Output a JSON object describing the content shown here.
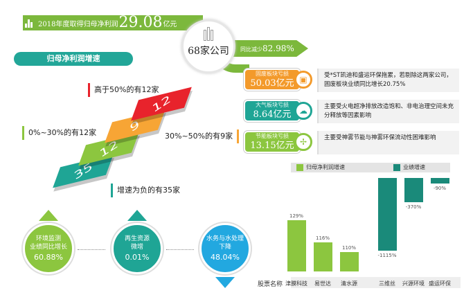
{
  "banner": {
    "prefix": "2018年度取得归母净利润",
    "value": "29.08",
    "unit": "亿元"
  },
  "hub": {
    "label": "68家公司"
  },
  "decline": {
    "prefix": "同比减少",
    "value": "82.98%"
  },
  "growth_title": "归母净利润增速",
  "steps": [
    {
      "count": "35",
      "label": "增速为负的有35家",
      "color": "#1fa595"
    },
    {
      "count": "12",
      "label": "0%~30%的有12家",
      "color": "#8cc63f"
    },
    {
      "count": "9",
      "label": "30%~50%的有9家",
      "color": "#f7a535"
    },
    {
      "count": "12",
      "label": "高于50%的有12家",
      "color": "#e8232c"
    }
  ],
  "sectors": [
    {
      "title": "固废板块亏损",
      "value": "50.03亿元",
      "note": "受*ST凯迪和盛运环保拖累，若剔除这两家公司，固废板块业绩同比增长20.75%",
      "color": "#f39a2b",
      "icon": "trash-bin-icon"
    },
    {
      "title": "大气板块亏损",
      "value": "8.64亿元",
      "note": "主要受火电超净排放改造饱和、非电治理空间未充分释放等因素影响",
      "color": "#1fa595",
      "icon": "cloud-icon"
    },
    {
      "title": "节能板块亏损",
      "value": "13.15亿元",
      "note": "主要受神雾节能与神雾环保流动性困难影响",
      "color": "#8cc63f",
      "icon": "wind-turbine-icon"
    }
  ],
  "segments": [
    {
      "lines": [
        "环境监测",
        "业绩同比增长"
      ],
      "value": "60.88%",
      "color": "#8cc63f",
      "trend": "up"
    },
    {
      "lines": [
        "再生资源",
        "微增"
      ],
      "value": "0.01%",
      "color": "#1fa595",
      "trend": "up"
    },
    {
      "lines": [
        "水务与水处理",
        "下降"
      ],
      "value": "48.04%",
      "color": "#22a8e0",
      "trend": "down"
    }
  ],
  "chart_data": {
    "type": "bar",
    "xlabel": "股票名称",
    "series": [
      {
        "name": "归母净利润增速",
        "color": "#8cc63f",
        "categories": [
          "津膜科技",
          "易世达",
          "清水源"
        ],
        "values": [
          129,
          116,
          110
        ],
        "labels": [
          "129%",
          "116%",
          "110%"
        ]
      },
      {
        "name": "业绩增速",
        "color": "#1a8a7a",
        "categories": [
          "三维丝",
          "兴源环境",
          "盛运环保"
        ],
        "values": [
          -1115,
          -370,
          -90
        ],
        "labels": [
          "-1115%",
          "-370%",
          "-90%"
        ]
      }
    ]
  }
}
